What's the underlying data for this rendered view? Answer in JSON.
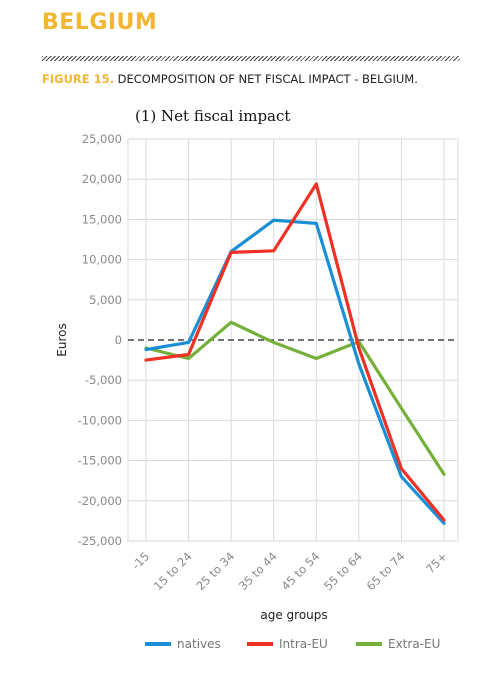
{
  "page": {
    "country": "BELGIUM",
    "figure_label": "FIGURE 15.",
    "figure_title": "DECOMPOSITION OF NET FISCAL IMPACT - BELGIUM."
  },
  "chart_data": {
    "type": "line",
    "title": "(1) Net fiscal impact",
    "xlabel": "age groups",
    "ylabel": "Euros",
    "categories": [
      "-15",
      "15 to 24",
      "25 to 34",
      "35 to 44",
      "45 to 54",
      "55 to 64",
      "65 to 74",
      "75+"
    ],
    "ylim": [
      -25000,
      25000
    ],
    "yticks": [
      25000,
      20000,
      15000,
      10000,
      5000,
      0,
      -5000,
      -10000,
      -15000,
      -20000,
      -25000
    ],
    "ytick_labels": [
      "25,000",
      "20,000",
      "15,000",
      "10,000",
      "5,000",
      "0",
      "-5,000",
      "-10,000",
      "-15,000",
      "-20,000",
      "-25,000"
    ],
    "grid": true,
    "zero_line": "dashed",
    "legend_position": "bottom",
    "series": [
      {
        "name": "natives",
        "color": "#1a8fd6",
        "values": [
          -1200,
          -300,
          11000,
          14900,
          14500,
          -3000,
          -17000,
          -22800
        ]
      },
      {
        "name": "Intra-EU",
        "color": "#ee3124",
        "values": [
          -2500,
          -1800,
          10900,
          11100,
          19400,
          -1000,
          -16000,
          -22400
        ]
      },
      {
        "name": "Extra-EU",
        "color": "#74b03a",
        "values": [
          -1000,
          -2300,
          2200,
          -300,
          -2300,
          -200,
          -8500,
          -16700
        ]
      }
    ]
  }
}
